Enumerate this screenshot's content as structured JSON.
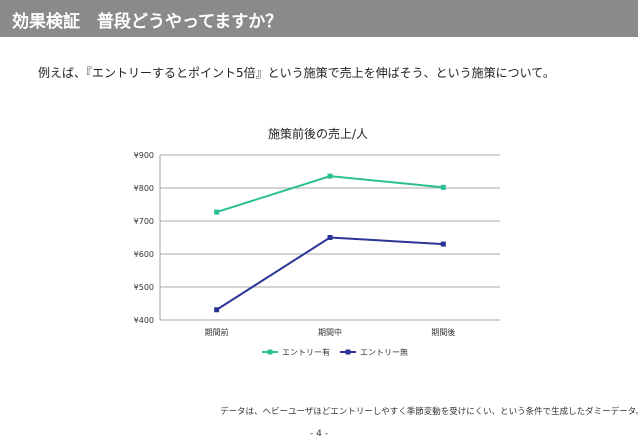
{
  "header": {
    "title": "効果検証　普段どうやってますか？"
  },
  "subtitle": "例えば、『エントリーするとポイント5倍』という施策で売上を伸ばそう、という施策について。",
  "footnote": "データは、ヘビーユーザほどエントリーしやすく季節変動を受けにくい、という条件で生成したダミーデータ。",
  "page_number": "- 4 -",
  "colors": {
    "header_bg": "#8a8a8a",
    "series_entry_yes": "#2bbf96",
    "series_entry_no": "#2b3595"
  },
  "chart_data": {
    "type": "line",
    "title": "施策前後の売上/人",
    "categories": [
      "期間前",
      "期間中",
      "期間後"
    ],
    "series": [
      {
        "name": "エントリー有",
        "values": [
          727,
          836,
          802
        ],
        "color": "#2bbf96",
        "marker": "square"
      },
      {
        "name": "エントリー無",
        "values": [
          431,
          650,
          630
        ],
        "color": "#2b3595",
        "marker": "square"
      }
    ],
    "ylim": [
      400,
      900
    ],
    "yticks": [
      400,
      500,
      600,
      700,
      800,
      900
    ],
    "ytick_labels": [
      "¥400",
      "¥500",
      "¥600",
      "¥700",
      "¥800",
      "¥900"
    ],
    "grid": true,
    "legend": "bottom"
  }
}
